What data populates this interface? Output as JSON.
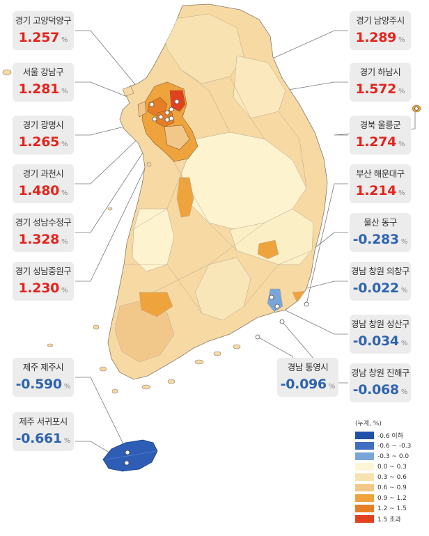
{
  "legend": {
    "title": "(누계, %)",
    "items": [
      {
        "label": "-0.6 이하",
        "color": "#1f4fa8"
      },
      {
        "label": "-0.6 ~ -0.3",
        "color": "#3f6fbd"
      },
      {
        "label": "-0.3 ~ 0.0",
        "color": "#7aa5d8"
      },
      {
        "label": "0.0 ~ 0.3",
        "color": "#fdf6d6"
      },
      {
        "label": "0.3 ~ 0.6",
        "color": "#f8e2b0"
      },
      {
        "label": "0.6 ~ 0.9",
        "color": "#f2c88a"
      },
      {
        "label": "0.9 ~ 1.2",
        "color": "#eea33c"
      },
      {
        "label": "1.2 ~ 1.5",
        "color": "#e77e26"
      },
      {
        "label": "1.5 초과",
        "color": "#e2411f"
      }
    ]
  },
  "unit": "%",
  "callouts": [
    {
      "name": "경기 고양덕양구",
      "value": "1.257",
      "sign": "pos"
    },
    {
      "name": "서울 강남구",
      "value": "1.281",
      "sign": "pos"
    },
    {
      "name": "경기 광명시",
      "value": "1.265",
      "sign": "pos"
    },
    {
      "name": "경기 과천시",
      "value": "1.480",
      "sign": "pos"
    },
    {
      "name": "경기 성남수정구",
      "value": "1.328",
      "sign": "pos"
    },
    {
      "name": "경기 성남중원구",
      "value": "1.230",
      "sign": "pos"
    },
    {
      "name": "제주 제주시",
      "value": "-0.590",
      "sign": "neg"
    },
    {
      "name": "제주 서귀포시",
      "value": "-0.661",
      "sign": "neg"
    },
    {
      "name": "경기 남양주시",
      "value": "1.289",
      "sign": "pos"
    },
    {
      "name": "경기 하남시",
      "value": "1.572",
      "sign": "pos"
    },
    {
      "name": "경북 울릉군",
      "value": "1.274",
      "sign": "pos"
    },
    {
      "name": "부산 해운대구",
      "value": "1.214",
      "sign": "pos"
    },
    {
      "name": "울산 동구",
      "value": "-0.283",
      "sign": "neg"
    },
    {
      "name": "경남 창원 의창구",
      "value": "-0.022",
      "sign": "neg"
    },
    {
      "name": "경남 창원 성산구",
      "value": "-0.034",
      "sign": "neg"
    },
    {
      "name": "경남 창원 진해구",
      "value": "-0.068",
      "sign": "neg"
    },
    {
      "name": "경남 통영시",
      "value": "-0.096",
      "sign": "neg"
    }
  ]
}
